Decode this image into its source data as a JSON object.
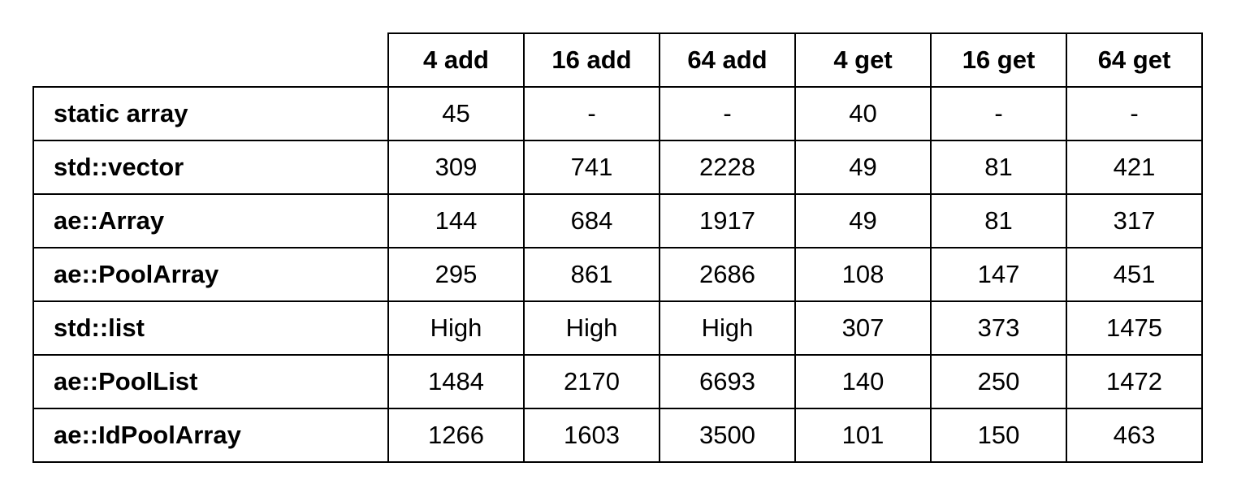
{
  "table": {
    "columns": [
      "4 add",
      "16 add",
      "64 add",
      "4 get",
      "16 get",
      "64 get"
    ],
    "rows": [
      {
        "label": "static array",
        "cells": [
          "45",
          "-",
          "-",
          "40",
          "-",
          "-"
        ]
      },
      {
        "label": "std::vector",
        "cells": [
          "309",
          "741",
          "2228",
          "49",
          "81",
          "421"
        ]
      },
      {
        "label": "ae::Array",
        "cells": [
          "144",
          "684",
          "1917",
          "49",
          "81",
          "317"
        ]
      },
      {
        "label": "ae::PoolArray",
        "cells": [
          "295",
          "861",
          "2686",
          "108",
          "147",
          "451"
        ]
      },
      {
        "label": "std::list",
        "cells": [
          "High",
          "High",
          "High",
          "307",
          "373",
          "1475"
        ]
      },
      {
        "label": "ae::PoolList",
        "cells": [
          "1484",
          "2170",
          "6693",
          "140",
          "250",
          "1472"
        ]
      },
      {
        "label": "ae::IdPoolArray",
        "cells": [
          "1266",
          "1603",
          "3500",
          "101",
          "150",
          "463"
        ]
      }
    ]
  }
}
